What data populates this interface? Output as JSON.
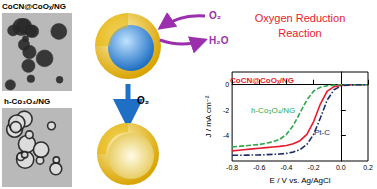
{
  "diagram": {
    "images": [
      {
        "label": "CoCN@CoOₓ/NG"
      },
      {
        "label": "h-Co₃O₄/NG"
      }
    ],
    "schematic": {
      "in_gas": "O₂",
      "out_product": "H₂O",
      "process": [
        "Oxygen Reduction",
        "Reaction"
      ],
      "transform_gas": "O₂"
    }
  },
  "chart_data": {
    "type": "line",
    "x_label": "E / V vs. Ag/AgCl",
    "y_label": "J / mA cm⁻²",
    "x": [
      -0.8,
      -0.75,
      -0.7,
      -0.65,
      -0.6,
      -0.55,
      -0.5,
      -0.45,
      -0.4,
      -0.35,
      -0.3,
      -0.25,
      -0.2,
      -0.15,
      -0.1,
      -0.05,
      0,
      0.05,
      0.1,
      0.15,
      0.2
    ],
    "series": [
      {
        "name": "CoCN@CoOₓ/NG",
        "color": "#e8192c",
        "line_style": "solid",
        "values": [
          -5.2,
          -5.15,
          -5.1,
          -5.05,
          -5.0,
          -4.95,
          -4.9,
          -4.85,
          -4.78,
          -4.65,
          -4.4,
          -3.9,
          -2.9,
          -1.5,
          -0.5,
          -0.15,
          -0.05,
          -0.02,
          0,
          0,
          0
        ]
      },
      {
        "name": "h-Co₃O₄/NG",
        "color": "#2ea84a",
        "line_style": "dashed",
        "values": [
          -4.9,
          -4.85,
          -4.8,
          -4.75,
          -4.7,
          -4.6,
          -4.5,
          -4.3,
          -3.9,
          -3.2,
          -2.2,
          -1.2,
          -0.5,
          -0.2,
          -0.08,
          -0.03,
          0,
          0,
          0,
          0,
          0
        ]
      },
      {
        "name": "Pt-C",
        "color": "#1c2a6e",
        "line_style": "dashdot",
        "values": [
          -5.55,
          -5.55,
          -5.54,
          -5.53,
          -5.52,
          -5.5,
          -5.48,
          -5.45,
          -5.4,
          -5.3,
          -5.1,
          -4.7,
          -3.9,
          -2.6,
          -1.2,
          -0.4,
          -0.1,
          -0.03,
          0,
          0,
          0
        ]
      }
    ],
    "xlim": [
      -0.8,
      0.2
    ],
    "xticks": [
      -0.8,
      -0.6,
      -0.4,
      -0.2,
      {
        "value": 0,
        "label": "0.0"
      },
      0.2
    ],
    "ylim": [
      -6,
      1
    ],
    "yticks": [
      -4,
      -2,
      0
    ],
    "grid": false
  }
}
